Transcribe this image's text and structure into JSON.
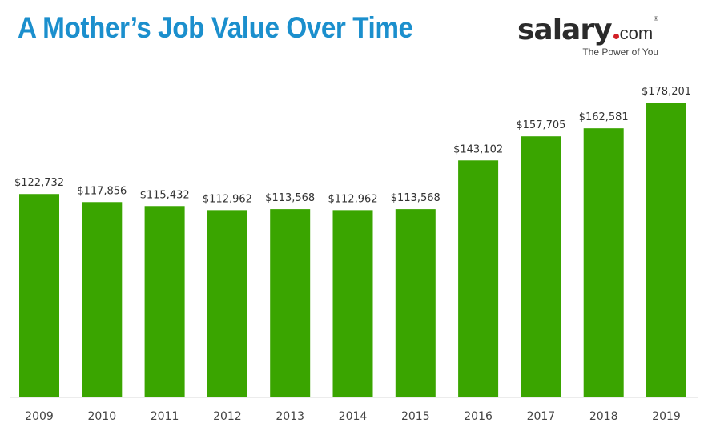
{
  "chart_data": {
    "type": "bar",
    "title": "A Mother’s Job Value Over Time",
    "xlabel": "",
    "ylabel": "",
    "categories": [
      "2009",
      "2010",
      "2011",
      "2012",
      "2013",
      "2014",
      "2015",
      "2016",
      "2017",
      "2018",
      "2019"
    ],
    "values": [
      122732,
      117856,
      115432,
      112962,
      113568,
      112962,
      113568,
      143102,
      157705,
      162581,
      178201
    ],
    "data_labels": [
      "$122,732",
      "$117,856",
      "$115,432",
      "$112,962",
      "$113,568",
      "$112,962",
      "$113,568",
      "$143,102",
      "$157,705",
      "$162,581",
      "$178,201"
    ],
    "ylim": [
      0,
      178201
    ],
    "grid": false,
    "bar_color": "#3aa500",
    "title_color": "#1b8fcd"
  },
  "logo": {
    "word": "salary",
    "com": "com",
    "tagline": "The Power of You",
    "reg": "®"
  }
}
